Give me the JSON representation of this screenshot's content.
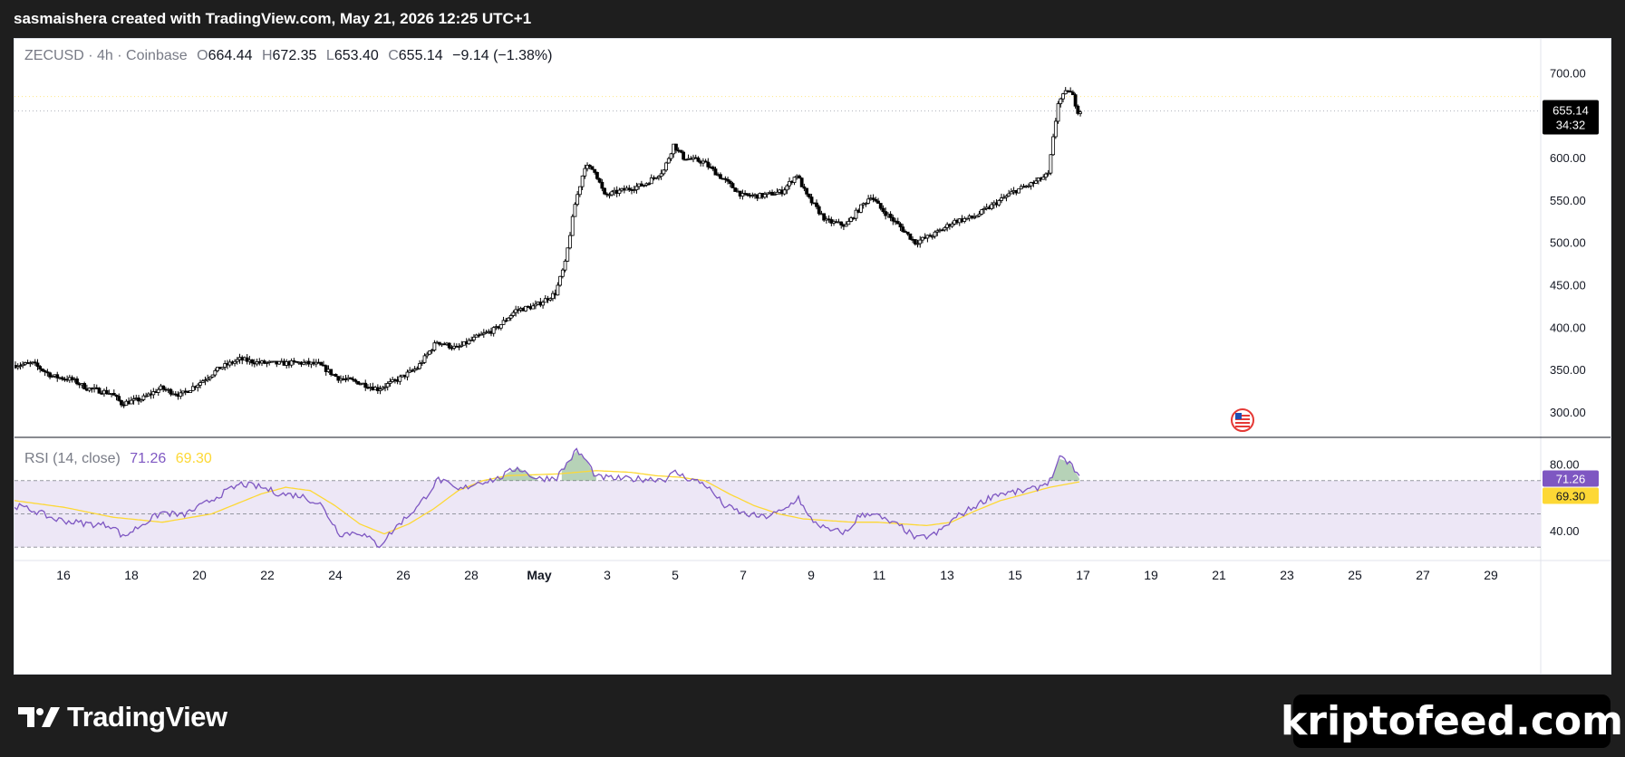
{
  "header": {
    "attribution": "sasmaishera created with TradingView.com, May 21, 2026 12:25 UTC+1"
  },
  "legend": {
    "symbol": "ZECUSD",
    "interval": "4h",
    "exchange": "Coinbase",
    "open_label": "O",
    "open": "664.44",
    "high_label": "H",
    "high": "672.35",
    "low_label": "L",
    "low": "653.40",
    "close_label": "C",
    "close": "655.14",
    "change": "−9.14 (−1.38%)"
  },
  "price_badge": {
    "price": "655.14",
    "countdown": "34:32"
  },
  "rsi_legend": {
    "label": "RSI (14, close)",
    "rsi": "71.26",
    "ma": "69.30"
  },
  "rsi_badges": {
    "rsi": "71.26",
    "ma": "69.30"
  },
  "footer": {
    "brand": "TradingView",
    "watermark": "kriptofeed.com"
  },
  "colors": {
    "up": "#ffffff",
    "down": "#000000",
    "rsi_line": "#7e57c2",
    "rsi_ma": "#fdd835",
    "band_fill": "#ede7f6",
    "overbought_fill": "#2e7d32"
  },
  "chart_data": [
    {
      "type": "candlestick",
      "title": "ZECUSD · 4h · Coinbase",
      "x_ticks": [
        "16",
        "18",
        "20",
        "22",
        "24",
        "26",
        "28",
        "May",
        "3",
        "5",
        "7",
        "9",
        "11",
        "13",
        "15",
        "17",
        "19",
        "21",
        "23",
        "25",
        "27",
        "29"
      ],
      "y_ticks": [
        "700.00",
        "600.00",
        "550.00",
        "500.00",
        "450.00",
        "400.00",
        "350.00",
        "300.00"
      ],
      "ylim": [
        270,
        740
      ],
      "last_price": 655.14,
      "anchors": [
        [
          0,
          355
        ],
        [
          8,
          357
        ],
        [
          16,
          342
        ],
        [
          24,
          338
        ],
        [
          30,
          328
        ],
        [
          40,
          322
        ],
        [
          44,
          310
        ],
        [
          52,
          315
        ],
        [
          60,
          328
        ],
        [
          68,
          320
        ],
        [
          76,
          335
        ],
        [
          84,
          352
        ],
        [
          92,
          362
        ],
        [
          100,
          358
        ],
        [
          108,
          357
        ],
        [
          116,
          358
        ],
        [
          124,
          356
        ],
        [
          132,
          340
        ],
        [
          140,
          335
        ],
        [
          148,
          327
        ],
        [
          156,
          338
        ],
        [
          164,
          352
        ],
        [
          172,
          383
        ],
        [
          180,
          375
        ],
        [
          188,
          388
        ],
        [
          196,
          398
        ],
        [
          204,
          420
        ],
        [
          212,
          425
        ],
        [
          220,
          440
        ],
        [
          224,
          475
        ],
        [
          228,
          545
        ],
        [
          232,
          590
        ],
        [
          236,
          585
        ],
        [
          240,
          555
        ],
        [
          248,
          562
        ],
        [
          256,
          568
        ],
        [
          264,
          585
        ],
        [
          268,
          615
        ],
        [
          272,
          600
        ],
        [
          280,
          595
        ],
        [
          288,
          575
        ],
        [
          296,
          555
        ],
        [
          304,
          555
        ],
        [
          312,
          560
        ],
        [
          318,
          580
        ],
        [
          322,
          555
        ],
        [
          330,
          525
        ],
        [
          338,
          520
        ],
        [
          342,
          535
        ],
        [
          348,
          555
        ],
        [
          352,
          540
        ],
        [
          360,
          518
        ],
        [
          366,
          500
        ],
        [
          374,
          510
        ],
        [
          382,
          525
        ],
        [
          390,
          530
        ],
        [
          398,
          545
        ],
        [
          406,
          560
        ],
        [
          414,
          570
        ],
        [
          420,
          580
        ],
        [
          424,
          665
        ],
        [
          428,
          680
        ],
        [
          430,
          672
        ],
        [
          432,
          655
        ]
      ],
      "bars": 433
    },
    {
      "type": "line",
      "title": "RSI (14, close)",
      "y_ticks": [
        "80.00",
        "40.00"
      ],
      "ylim": [
        22,
        96
      ],
      "bands": [
        30,
        50,
        70
      ],
      "series": [
        {
          "name": "RSI",
          "anchors": [
            [
              0,
              55
            ],
            [
              8,
              52
            ],
            [
              16,
              47
            ],
            [
              24,
              45
            ],
            [
              30,
              44
            ],
            [
              40,
              43
            ],
            [
              44,
              36
            ],
            [
              52,
              44
            ],
            [
              60,
              51
            ],
            [
              68,
              49
            ],
            [
              76,
              55
            ],
            [
              84,
              62
            ],
            [
              92,
              68
            ],
            [
              100,
              66
            ],
            [
              108,
              62
            ],
            [
              116,
              61
            ],
            [
              124,
              56
            ],
            [
              132,
              38
            ],
            [
              140,
              39
            ],
            [
              148,
              31
            ],
            [
              156,
              44
            ],
            [
              164,
              55
            ],
            [
              172,
              71
            ],
            [
              180,
              64
            ],
            [
              188,
              69
            ],
            [
              196,
              71
            ],
            [
              204,
              78
            ],
            [
              212,
              71
            ],
            [
              220,
              72
            ],
            [
              224,
              80
            ],
            [
              228,
              88
            ],
            [
              232,
              82
            ],
            [
              236,
              72
            ],
            [
              248,
              71
            ],
            [
              256,
              71
            ],
            [
              264,
              71
            ],
            [
              268,
              75
            ],
            [
              272,
              72
            ],
            [
              280,
              68
            ],
            [
              288,
              55
            ],
            [
              296,
              50
            ],
            [
              304,
              48
            ],
            [
              312,
              52
            ],
            [
              318,
              60
            ],
            [
              322,
              48
            ],
            [
              330,
              40
            ],
            [
              338,
              39
            ],
            [
              342,
              48
            ],
            [
              348,
              51
            ],
            [
              352,
              47
            ],
            [
              360,
              42
            ],
            [
              366,
              35
            ],
            [
              374,
              38
            ],
            [
              382,
              48
            ],
            [
              390,
              55
            ],
            [
              398,
              62
            ],
            [
              406,
              63
            ],
            [
              414,
              65
            ],
            [
              420,
              70
            ],
            [
              424,
              83
            ],
            [
              428,
              81
            ],
            [
              432,
              71.26
            ]
          ]
        },
        {
          "name": "MA",
          "anchors": [
            [
              0,
              58
            ],
            [
              20,
              54
            ],
            [
              40,
              48
            ],
            [
              60,
              45
            ],
            [
              80,
              50
            ],
            [
              100,
              62
            ],
            [
              110,
              66
            ],
            [
              120,
              64
            ],
            [
              130,
              55
            ],
            [
              140,
              44
            ],
            [
              150,
              38
            ],
            [
              160,
              44
            ],
            [
              170,
              53
            ],
            [
              180,
              64
            ],
            [
              190,
              70
            ],
            [
              200,
              73
            ],
            [
              220,
              74
            ],
            [
              236,
              76
            ],
            [
              250,
              75
            ],
            [
              260,
              73
            ],
            [
              270,
              72
            ],
            [
              280,
              70
            ],
            [
              290,
              62
            ],
            [
              300,
              55
            ],
            [
              310,
              50
            ],
            [
              320,
              47
            ],
            [
              330,
              46
            ],
            [
              340,
              45
            ],
            [
              350,
              45
            ],
            [
              360,
              44
            ],
            [
              370,
              43
            ],
            [
              380,
              45
            ],
            [
              390,
              52
            ],
            [
              400,
              58
            ],
            [
              410,
              62
            ],
            [
              420,
              66
            ],
            [
              432,
              69.3
            ]
          ]
        }
      ]
    }
  ]
}
